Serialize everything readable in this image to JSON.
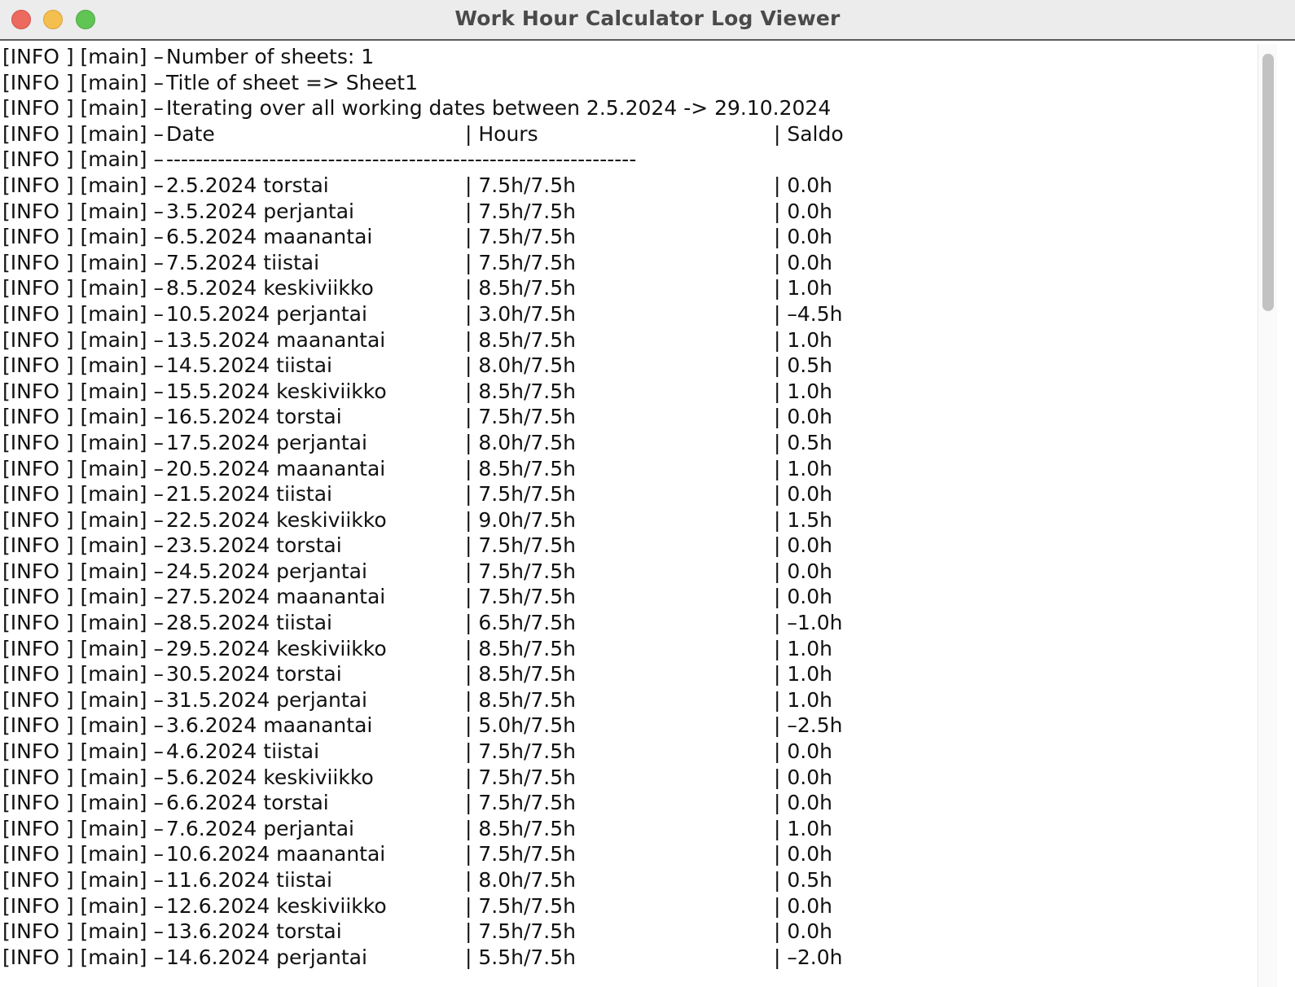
{
  "window": {
    "title": "Work Hour Calculator Log Viewer"
  },
  "log": {
    "header_lines": [
      {
        "prefix": "[INFO ] [main] –",
        "text": "Number of sheets: 1"
      },
      {
        "prefix": "[INFO ] [main] –",
        "text": "Title of sheet => Sheet1"
      },
      {
        "prefix": "[INFO ] [main] –",
        "text": "Iterating over all working dates between 2.5.2024 -> 29.10.2024"
      }
    ],
    "column_header": {
      "prefix": "[INFO ] [main] –",
      "date": "Date",
      "hours": "| Hours",
      "saldo": "| Saldo"
    },
    "separator": {
      "prefix": "[INFO ] [main] –",
      "text": "----------------------------------------------------------------"
    },
    "rows": [
      {
        "prefix": "[INFO ] [main] –",
        "date": "2.5.2024 torstai",
        "hours": "| 7.5h/7.5h",
        "saldo": "| 0.0h"
      },
      {
        "prefix": "[INFO ] [main] –",
        "date": "3.5.2024 perjantai",
        "hours": "| 7.5h/7.5h",
        "saldo": "| 0.0h"
      },
      {
        "prefix": "[INFO ] [main] –",
        "date": "6.5.2024 maanantai",
        "hours": "| 7.5h/7.5h",
        "saldo": "| 0.0h"
      },
      {
        "prefix": "[INFO ] [main] –",
        "date": "7.5.2024 tiistai",
        "hours": "| 7.5h/7.5h",
        "saldo": "| 0.0h"
      },
      {
        "prefix": "[INFO ] [main] –",
        "date": "8.5.2024 keskiviikko",
        "hours": "| 8.5h/7.5h",
        "saldo": "| 1.0h"
      },
      {
        "prefix": "[INFO ] [main] –",
        "date": "10.5.2024 perjantai",
        "hours": "| 3.0h/7.5h",
        "saldo": "| –4.5h"
      },
      {
        "prefix": "[INFO ] [main] –",
        "date": "13.5.2024 maanantai",
        "hours": "| 8.5h/7.5h",
        "saldo": "| 1.0h"
      },
      {
        "prefix": "[INFO ] [main] –",
        "date": "14.5.2024 tiistai",
        "hours": "| 8.0h/7.5h",
        "saldo": "| 0.5h"
      },
      {
        "prefix": "[INFO ] [main] –",
        "date": "15.5.2024 keskiviikko",
        "hours": "| 8.5h/7.5h",
        "saldo": "| 1.0h"
      },
      {
        "prefix": "[INFO ] [main] –",
        "date": "16.5.2024 torstai",
        "hours": "| 7.5h/7.5h",
        "saldo": "| 0.0h"
      },
      {
        "prefix": "[INFO ] [main] –",
        "date": "17.5.2024 perjantai",
        "hours": "| 8.0h/7.5h",
        "saldo": "| 0.5h"
      },
      {
        "prefix": "[INFO ] [main] –",
        "date": "20.5.2024 maanantai",
        "hours": "| 8.5h/7.5h",
        "saldo": "| 1.0h"
      },
      {
        "prefix": "[INFO ] [main] –",
        "date": "21.5.2024 tiistai",
        "hours": "| 7.5h/7.5h",
        "saldo": "| 0.0h"
      },
      {
        "prefix": "[INFO ] [main] –",
        "date": "22.5.2024 keskiviikko",
        "hours": "| 9.0h/7.5h",
        "saldo": "| 1.5h"
      },
      {
        "prefix": "[INFO ] [main] –",
        "date": "23.5.2024 torstai",
        "hours": "| 7.5h/7.5h",
        "saldo": "| 0.0h"
      },
      {
        "prefix": "[INFO ] [main] –",
        "date": "24.5.2024 perjantai",
        "hours": "| 7.5h/7.5h",
        "saldo": "| 0.0h"
      },
      {
        "prefix": "[INFO ] [main] –",
        "date": "27.5.2024 maanantai",
        "hours": "| 7.5h/7.5h",
        "saldo": "| 0.0h"
      },
      {
        "prefix": "[INFO ] [main] –",
        "date": "28.5.2024 tiistai",
        "hours": "| 6.5h/7.5h",
        "saldo": "| –1.0h"
      },
      {
        "prefix": "[INFO ] [main] –",
        "date": "29.5.2024 keskiviikko",
        "hours": "| 8.5h/7.5h",
        "saldo": "| 1.0h"
      },
      {
        "prefix": "[INFO ] [main] –",
        "date": "30.5.2024 torstai",
        "hours": "| 8.5h/7.5h",
        "saldo": "| 1.0h"
      },
      {
        "prefix": "[INFO ] [main] –",
        "date": "31.5.2024 perjantai",
        "hours": "| 8.5h/7.5h",
        "saldo": "| 1.0h"
      },
      {
        "prefix": "[INFO ] [main] –",
        "date": "3.6.2024 maanantai",
        "hours": "| 5.0h/7.5h",
        "saldo": "| –2.5h"
      },
      {
        "prefix": "[INFO ] [main] –",
        "date": "4.6.2024 tiistai",
        "hours": "| 7.5h/7.5h",
        "saldo": "| 0.0h"
      },
      {
        "prefix": "[INFO ] [main] –",
        "date": "5.6.2024 keskiviikko",
        "hours": "| 7.5h/7.5h",
        "saldo": "| 0.0h"
      },
      {
        "prefix": "[INFO ] [main] –",
        "date": "6.6.2024 torstai",
        "hours": "| 7.5h/7.5h",
        "saldo": "| 0.0h"
      },
      {
        "prefix": "[INFO ] [main] –",
        "date": "7.6.2024 perjantai",
        "hours": "| 8.5h/7.5h",
        "saldo": "| 1.0h"
      },
      {
        "prefix": "[INFO ] [main] –",
        "date": "10.6.2024 maanantai",
        "hours": "| 7.5h/7.5h",
        "saldo": "| 0.0h"
      },
      {
        "prefix": "[INFO ] [main] –",
        "date": "11.6.2024 tiistai",
        "hours": "| 8.0h/7.5h",
        "saldo": "| 0.5h"
      },
      {
        "prefix": "[INFO ] [main] –",
        "date": "12.6.2024 keskiviikko",
        "hours": "| 7.5h/7.5h",
        "saldo": "| 0.0h"
      },
      {
        "prefix": "[INFO ] [main] –",
        "date": "13.6.2024 torstai",
        "hours": "| 7.5h/7.5h",
        "saldo": "| 0.0h"
      },
      {
        "prefix": "[INFO ] [main] –",
        "date": "14.6.2024 perjantai",
        "hours": "| 5.5h/7.5h",
        "saldo": "| –2.0h"
      }
    ]
  }
}
